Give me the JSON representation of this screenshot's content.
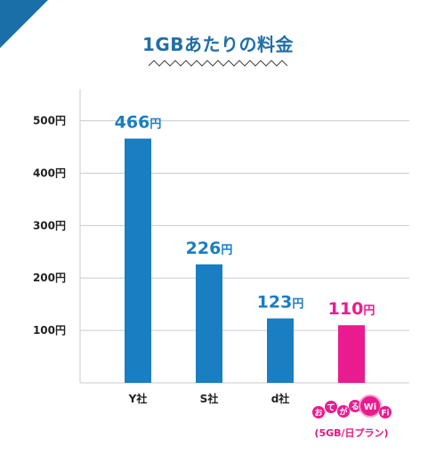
{
  "title": "1GBあたりの料金",
  "colors": {
    "accent": "#1a7ec2",
    "highlight": "#ea1b8f",
    "title": "#1f6fa8",
    "grid": "#cccccc"
  },
  "chart_data": {
    "type": "bar",
    "title": "1GBあたりの料金",
    "categories": [
      "Y社",
      "S社",
      "d社",
      "おてがるWiFi"
    ],
    "values": [
      466,
      226,
      123,
      110
    ],
    "unit": "円",
    "category_subtitles": [
      "",
      "",
      "",
      "(5GB/日プラン)"
    ],
    "yticks": [
      "100円",
      "200円",
      "300円",
      "400円",
      "500円"
    ],
    "ylim": [
      0,
      500
    ],
    "grid": true,
    "highlight_index": 3
  },
  "logo": {
    "text": "おてがるWiFi",
    "icon": "wifi-logo"
  }
}
